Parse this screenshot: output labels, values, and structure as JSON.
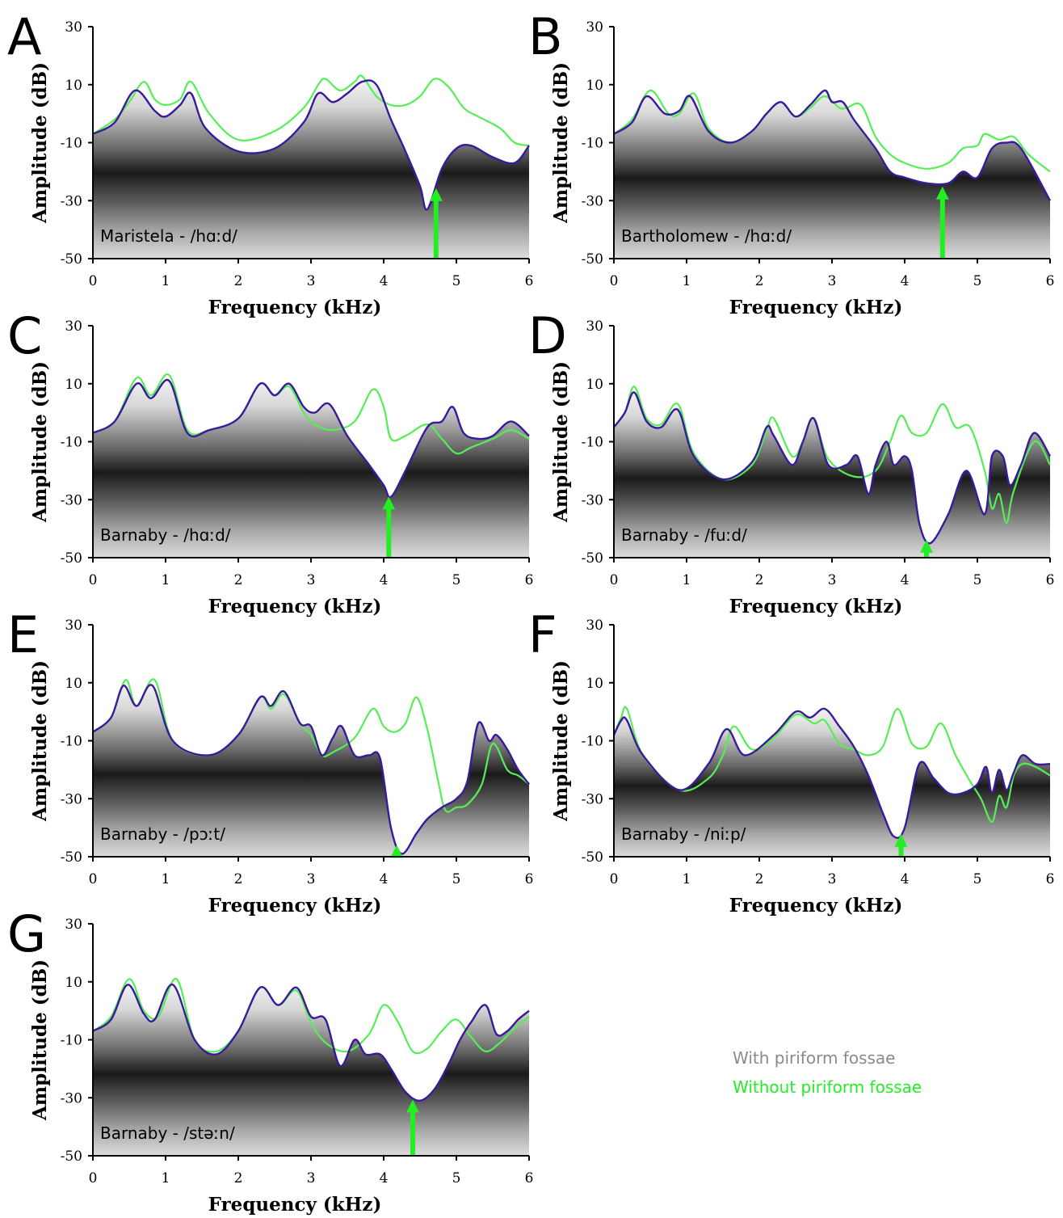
{
  "colors": {
    "with_line": "#3a1a9a",
    "without_line": "#55ee55",
    "arrow": "#22ee22",
    "legend_with": "#8a8a8a",
    "legend_without": "#22ee22"
  },
  "legend": {
    "with_label": "With piriform fossae",
    "without_label": "Without piriform fossae"
  },
  "chart_data": [
    {
      "panel": "A",
      "type": "line",
      "label": "Maristela - /hɑːd/",
      "xlabel": "Frequency (kHz)",
      "ylabel": "Amplitude (dB)",
      "xlim": [
        0,
        6
      ],
      "ylim": [
        -50,
        30
      ],
      "xticks": [
        "0",
        "1",
        "2",
        "3",
        "4",
        "5",
        "6"
      ],
      "yticks": [
        "30",
        "10",
        "-10",
        "-30",
        "-50"
      ],
      "arrow_x": 4.72,
      "series": [
        {
          "name": "With piriform fossae",
          "x": [
            0,
            0.3,
            0.58,
            0.85,
            1.0,
            1.2,
            1.35,
            1.55,
            2.0,
            2.5,
            2.9,
            3.1,
            3.3,
            3.5,
            3.7,
            3.9,
            4.1,
            4.3,
            4.5,
            4.6,
            4.8,
            5.0,
            5.2,
            5.5,
            5.8,
            6.0
          ],
          "y": [
            -7,
            -3,
            8,
            1,
            -1,
            3,
            7,
            -5,
            -13,
            -12,
            -3,
            7,
            4,
            7,
            11,
            10,
            -2,
            -13,
            -25,
            -33,
            -19,
            -12,
            -11,
            -15,
            -17,
            -11
          ]
        },
        {
          "name": "Without piriform fossae",
          "x": [
            0,
            0.3,
            0.5,
            0.7,
            0.85,
            1.0,
            1.2,
            1.35,
            1.6,
            2.0,
            2.5,
            2.9,
            3.1,
            3.2,
            3.4,
            3.6,
            3.7,
            3.9,
            4.1,
            4.3,
            4.5,
            4.7,
            4.9,
            5.1,
            5.3,
            5.6,
            5.8,
            6.0
          ],
          "y": [
            -7,
            -2,
            4,
            11,
            5,
            3,
            5,
            11,
            0,
            -9,
            -6,
            2,
            10,
            12,
            8,
            11,
            13,
            6,
            3,
            3,
            6,
            12,
            9,
            2,
            -1,
            -5,
            -10,
            -11
          ]
        }
      ]
    },
    {
      "panel": "B",
      "type": "line",
      "label": "Bartholomew - /hɑːd/",
      "xlabel": "Frequency (kHz)",
      "ylabel": "Amplitude (dB)",
      "xlim": [
        0,
        6
      ],
      "ylim": [
        -50,
        30
      ],
      "xticks": [
        "0",
        "1",
        "2",
        "3",
        "4",
        "5",
        "6"
      ],
      "yticks": [
        "30",
        "10",
        "-10",
        "-30",
        "-50"
      ],
      "arrow_x": 4.52,
      "series": [
        {
          "name": "With piriform fossae",
          "x": [
            0,
            0.25,
            0.45,
            0.7,
            0.9,
            1.05,
            1.3,
            1.6,
            1.9,
            2.1,
            2.3,
            2.5,
            2.7,
            2.9,
            3.0,
            3.15,
            3.3,
            3.6,
            3.8,
            4.0,
            4.3,
            4.6,
            4.8,
            5.0,
            5.2,
            5.4,
            5.6,
            6.0
          ],
          "y": [
            -7,
            -3,
            6,
            0,
            1,
            6,
            -6,
            -10,
            -6,
            0,
            4,
            -1,
            3,
            8,
            4,
            4,
            -2,
            -12,
            -20,
            -22,
            -24,
            -24,
            -20,
            -22,
            -12,
            -10,
            -12,
            -30
          ]
        },
        {
          "name": "Without piriform fossae",
          "x": [
            0,
            0.25,
            0.5,
            0.75,
            0.9,
            1.1,
            1.3,
            1.6,
            1.9,
            2.1,
            2.3,
            2.5,
            2.7,
            2.9,
            3.1,
            3.2,
            3.4,
            3.6,
            3.8,
            4.0,
            4.3,
            4.6,
            4.8,
            5.0,
            5.1,
            5.3,
            5.5,
            5.7,
            6.0
          ],
          "y": [
            -7,
            -2,
            8,
            0,
            0,
            7,
            -5,
            -10,
            -6,
            0,
            4,
            -1,
            2,
            6,
            2,
            2,
            3,
            -8,
            -14,
            -17,
            -19,
            -17,
            -12,
            -11,
            -7,
            -9,
            -8,
            -14,
            -20
          ]
        }
      ]
    },
    {
      "panel": "C",
      "type": "line",
      "label": "Barnaby - /hɑːd/",
      "xlabel": "Frequency (kHz)",
      "ylabel": "Amplitude (dB)",
      "xlim": [
        0,
        6
      ],
      "ylim": [
        -50,
        30
      ],
      "xticks": [
        "0",
        "1",
        "2",
        "3",
        "4",
        "5",
        "6"
      ],
      "yticks": [
        "30",
        "10",
        "-10",
        "-30",
        "-50"
      ],
      "arrow_x": 4.07,
      "series": [
        {
          "name": "With piriform fossae",
          "x": [
            0,
            0.3,
            0.6,
            0.8,
            1.05,
            1.3,
            1.6,
            2.0,
            2.3,
            2.5,
            2.7,
            2.9,
            3.05,
            3.25,
            3.5,
            3.8,
            4.0,
            4.1,
            4.3,
            4.6,
            4.8,
            4.95,
            5.1,
            5.3,
            5.5,
            5.75,
            6.0
          ],
          "y": [
            -7,
            -3,
            10,
            5,
            11,
            -7,
            -6,
            -2,
            10,
            6,
            10,
            2,
            0,
            3,
            -8,
            -18,
            -25,
            -29,
            -20,
            -5,
            -3,
            2,
            -7,
            -9,
            -8,
            -3,
            -8
          ]
        },
        {
          "name": "Without piriform fossae",
          "x": [
            0,
            0.3,
            0.6,
            0.8,
            1.05,
            1.3,
            1.6,
            2.0,
            2.3,
            2.5,
            2.7,
            2.9,
            3.05,
            3.3,
            3.6,
            3.85,
            4.0,
            4.1,
            4.3,
            4.6,
            4.8,
            5.0,
            5.2,
            5.5,
            5.75,
            6.0
          ],
          "y": [
            -7,
            -3,
            12,
            6,
            13,
            -6,
            -6,
            -2,
            10,
            6,
            9,
            0,
            -4,
            -6,
            -3,
            8,
            2,
            -9,
            -8,
            -4,
            -9,
            -14,
            -12,
            -9,
            -6,
            -9
          ]
        }
      ]
    },
    {
      "panel": "D",
      "type": "line",
      "label": "Barnaby - /fuːd/",
      "xlabel": "Frequency (kHz)",
      "ylabel": "Amplitude (dB)",
      "xlim": [
        0,
        6
      ],
      "ylim": [
        -50,
        30
      ],
      "xticks": [
        "0",
        "1",
        "2",
        "3",
        "4",
        "5",
        "6"
      ],
      "yticks": [
        "30",
        "10",
        "-10",
        "-30",
        "-50"
      ],
      "arrow_x": 4.3,
      "series": [
        {
          "name": "With piriform fossae",
          "x": [
            0,
            0.15,
            0.28,
            0.45,
            0.65,
            0.88,
            1.1,
            1.5,
            1.9,
            2.1,
            2.2,
            2.45,
            2.6,
            2.75,
            2.95,
            3.2,
            3.35,
            3.5,
            3.6,
            3.75,
            3.85,
            4.0,
            4.1,
            4.2,
            4.35,
            4.6,
            4.85,
            5.1,
            5.2,
            5.35,
            5.45,
            5.6,
            5.78,
            6.0
          ],
          "y": [
            -5,
            0,
            7,
            -3,
            -5,
            1,
            -15,
            -23,
            -17,
            -5,
            -8,
            -18,
            -10,
            -2,
            -18,
            -18,
            -15,
            -28,
            -18,
            -10,
            -18,
            -15,
            -20,
            -38,
            -45,
            -35,
            -20,
            -35,
            -15,
            -15,
            -25,
            -18,
            -7,
            -15
          ]
        },
        {
          "name": "Without piriform fossae",
          "x": [
            0,
            0.15,
            0.28,
            0.45,
            0.65,
            0.88,
            1.1,
            1.5,
            1.9,
            2.1,
            2.2,
            2.45,
            2.6,
            2.75,
            2.95,
            3.3,
            3.6,
            3.8,
            3.95,
            4.1,
            4.3,
            4.52,
            4.7,
            4.9,
            5.1,
            5.2,
            5.3,
            5.4,
            5.5,
            5.78,
            6.0
          ],
          "y": [
            -5,
            0,
            9,
            -2,
            -4,
            3,
            -14,
            -23,
            -18,
            -6,
            -2,
            -15,
            -10,
            -2,
            -16,
            -22,
            -20,
            -10,
            -1,
            -7,
            -7,
            3,
            -5,
            -5,
            -20,
            -33,
            -28,
            -38,
            -27,
            -10,
            -18
          ]
        }
      ]
    },
    {
      "panel": "E",
      "type": "line",
      "label": "Barnaby - /pɔːt/",
      "xlabel": "Frequency (kHz)",
      "ylabel": "Amplitude (dB)",
      "xlim": [
        0,
        6
      ],
      "ylim": [
        -50,
        30
      ],
      "xticks": [
        "0",
        "1",
        "2",
        "3",
        "4",
        "5",
        "6"
      ],
      "yticks": [
        "30",
        "10",
        "-10",
        "-30",
        "-50"
      ],
      "arrow_x": 4.18,
      "series": [
        {
          "name": "With piriform fossae",
          "x": [
            0,
            0.25,
            0.42,
            0.6,
            0.82,
            1.1,
            1.6,
            2.0,
            2.3,
            2.45,
            2.63,
            2.85,
            3.0,
            3.15,
            3.3,
            3.42,
            3.6,
            3.8,
            3.95,
            4.1,
            4.25,
            4.45,
            4.6,
            4.8,
            5.0,
            5.15,
            5.3,
            5.45,
            5.55,
            5.7,
            5.85,
            6.0
          ],
          "y": [
            -7,
            -2,
            9,
            2,
            9,
            -10,
            -15,
            -8,
            5,
            2,
            7,
            -4,
            -5,
            -15,
            -9,
            -5,
            -15,
            -15,
            -16,
            -40,
            -49,
            -42,
            -37,
            -33,
            -30,
            -24,
            -4,
            -10,
            -8,
            -13,
            -20,
            -25
          ]
        },
        {
          "name": "Without piriform fossae",
          "x": [
            0,
            0.25,
            0.45,
            0.6,
            0.85,
            1.1,
            1.6,
            2.0,
            2.3,
            2.45,
            2.63,
            2.85,
            3.0,
            3.15,
            3.3,
            3.6,
            3.85,
            4.0,
            4.15,
            4.3,
            4.45,
            4.6,
            4.75,
            4.85,
            5.0,
            5.15,
            5.35,
            5.5,
            5.7,
            5.85,
            6.0
          ],
          "y": [
            -7,
            -2,
            11,
            2,
            11,
            -10,
            -15,
            -8,
            5,
            1,
            6,
            -4,
            -8,
            -15,
            -14,
            -9,
            1,
            -5,
            -7,
            -4,
            5,
            -6,
            -24,
            -34,
            -33,
            -32,
            -25,
            -11,
            -20,
            -22,
            -25
          ]
        }
      ]
    },
    {
      "panel": "F",
      "type": "line",
      "label": "Barnaby - /niːp/",
      "xlabel": "Frequency (kHz)",
      "ylabel": "Amplitude (dB)",
      "xlim": [
        0,
        6
      ],
      "ylim": [
        -50,
        30
      ],
      "xticks": [
        "0",
        "1",
        "2",
        "3",
        "4",
        "5",
        "6"
      ],
      "yticks": [
        "30",
        "10",
        "-10",
        "-30",
        "-50"
      ],
      "arrow_x": 3.95,
      "series": [
        {
          "name": "With piriform fossae",
          "x": [
            0,
            0.1,
            0.18,
            0.4,
            0.9,
            1.3,
            1.55,
            1.8,
            2.2,
            2.5,
            2.7,
            2.9,
            3.1,
            3.3,
            3.5,
            3.7,
            3.85,
            4.0,
            4.2,
            4.4,
            4.6,
            4.8,
            5.0,
            5.12,
            5.2,
            5.3,
            5.4,
            5.5,
            5.62,
            5.8,
            6.0
          ],
          "y": [
            -8,
            -3,
            -3,
            -15,
            -27,
            -18,
            -6,
            -15,
            -8,
            0,
            -2,
            1,
            -5,
            -12,
            -22,
            -35,
            -43,
            -40,
            -18,
            -23,
            -28,
            -28,
            -25,
            -19,
            -28,
            -20,
            -27,
            -21,
            -15,
            -18,
            -18
          ]
        },
        {
          "name": "Without piriform fossae",
          "x": [
            0,
            0.1,
            0.18,
            0.4,
            0.9,
            1.3,
            1.5,
            1.65,
            1.9,
            2.2,
            2.5,
            2.75,
            2.9,
            3.1,
            3.3,
            3.5,
            3.7,
            3.9,
            4.1,
            4.3,
            4.5,
            4.7,
            4.9,
            5.05,
            5.2,
            5.3,
            5.4,
            5.5,
            5.62,
            5.8,
            6.0
          ],
          "y": [
            -8,
            -2,
            1,
            -15,
            -27,
            -23,
            -15,
            -5,
            -13,
            -9,
            -1,
            -4,
            -3,
            -11,
            -13,
            -15,
            -12,
            1,
            -11,
            -12,
            -4,
            -15,
            -24,
            -30,
            -38,
            -29,
            -33,
            -22,
            -18,
            -19,
            -22
          ]
        }
      ]
    },
    {
      "panel": "G",
      "type": "line",
      "label": "Barnaby - /stəːn/",
      "xlabel": "Frequency (kHz)",
      "ylabel": "Amplitude (dB)",
      "xlim": [
        0,
        6
      ],
      "ylim": [
        -50,
        30
      ],
      "xticks": [
        "0",
        "1",
        "2",
        "3",
        "4",
        "5",
        "6"
      ],
      "yticks": [
        "30",
        "10",
        "-10",
        "-30",
        "-50"
      ],
      "arrow_x": 4.4,
      "series": [
        {
          "name": "With piriform fossae",
          "x": [
            0,
            0.25,
            0.48,
            0.7,
            0.85,
            1.1,
            1.4,
            1.7,
            2.0,
            2.3,
            2.55,
            2.8,
            3.0,
            3.2,
            3.4,
            3.6,
            3.75,
            3.95,
            4.1,
            4.3,
            4.5,
            4.7,
            4.9,
            5.05,
            5.2,
            5.4,
            5.55,
            5.7,
            5.85,
            6.0
          ],
          "y": [
            -7,
            -3,
            9,
            -1,
            -3,
            9,
            -10,
            -15,
            -7,
            8,
            2,
            8,
            -2,
            -3,
            -19,
            -10,
            -15,
            -15,
            -20,
            -28,
            -31,
            -27,
            -18,
            -10,
            -4,
            2,
            -8,
            -7,
            -3,
            0
          ]
        },
        {
          "name": "Without piriform fossae",
          "x": [
            0,
            0.25,
            0.5,
            0.7,
            0.9,
            1.15,
            1.4,
            1.7,
            2.0,
            2.3,
            2.55,
            2.8,
            3.0,
            3.2,
            3.5,
            3.8,
            4.0,
            4.2,
            4.4,
            4.6,
            4.8,
            5.0,
            5.2,
            5.4,
            5.6,
            5.8,
            6.0
          ],
          "y": [
            -7,
            -2,
            11,
            0,
            -2,
            11,
            -10,
            -14,
            -7,
            8,
            2,
            7,
            -4,
            -11,
            -14,
            -8,
            2,
            -4,
            -14,
            -13,
            -7,
            -3,
            -9,
            -14,
            -11,
            -6,
            -2
          ]
        }
      ]
    }
  ]
}
